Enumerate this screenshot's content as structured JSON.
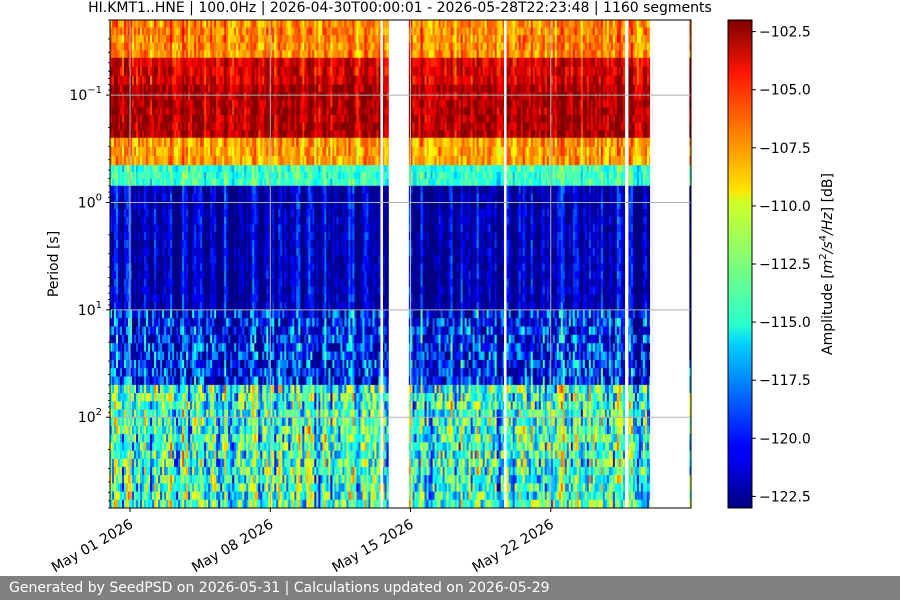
{
  "chart_data": {
    "type": "heatmap",
    "title": "HI.KMT1..HNE | 100.0Hz | 2026-04-30T00:00:01 - 2026-05-28T22:23:48 | 1160 segments",
    "xlabel": "",
    "ylabel": "Period [s]",
    "y_scale": "log",
    "y_inverted": true,
    "y_range": [
      0.02,
      700
    ],
    "x_range": [
      "2026-04-30",
      "2026-05-29"
    ],
    "x_ticks": [
      {
        "value": "2026-05-01",
        "label": "May 01 2026"
      },
      {
        "value": "2026-05-08",
        "label": "May 08 2026"
      },
      {
        "value": "2026-05-15",
        "label": "May 15 2026"
      },
      {
        "value": "2026-05-22",
        "label": "May 22 2026"
      }
    ],
    "y_ticks": [
      {
        "value": 0.1,
        "base": "10",
        "exp": "−1"
      },
      {
        "value": 1,
        "base": "10",
        "exp": "0"
      },
      {
        "value": 10,
        "base": "10",
        "exp": "1"
      },
      {
        "value": 100,
        "base": "10",
        "exp": "2"
      }
    ],
    "grid": true,
    "data_gaps": [
      {
        "start": "2026-05-13T12:00",
        "end": "2026-05-13T15:00"
      },
      {
        "start": "2026-05-13T22:00",
        "end": "2026-05-14T22:00"
      },
      {
        "start": "2026-05-19T16:00",
        "end": "2026-05-19T19:00"
      },
      {
        "start": "2026-05-25T17:00",
        "end": "2026-05-25T21:00"
      },
      {
        "start": "2026-05-26T23:00",
        "end": "2026-05-27T02:00"
      },
      {
        "start": "2026-05-27T02:00",
        "end": "2026-05-28T22:00"
      }
    ],
    "bands": [
      {
        "period_min": 0.02,
        "period_max": 0.045,
        "amplitude_db": -107.5
      },
      {
        "period_min": 0.045,
        "period_max": 0.08,
        "amplitude_db": -104.0
      },
      {
        "period_min": 0.08,
        "period_max": 0.25,
        "amplitude_db": -103.0
      },
      {
        "period_min": 0.25,
        "period_max": 0.45,
        "amplitude_db": -108.0
      },
      {
        "period_min": 0.45,
        "period_max": 0.7,
        "amplitude_db": -114.0
      },
      {
        "period_min": 0.7,
        "period_max": 10,
        "amplitude_db": -122.0
      },
      {
        "period_min": 10,
        "period_max": 50,
        "amplitude_db": -120.0
      },
      {
        "period_min": 50,
        "period_max": 700,
        "amplitude_db": -114.0
      }
    ],
    "colorbar": {
      "label_prefix": "Amplitude [",
      "label_suffix": "] [dB]",
      "label_unit_parts": [
        "m",
        "2",
        "/s",
        "4",
        "/Hz"
      ],
      "min": -123.0,
      "max": -102.0,
      "colormap": "jet",
      "ticks": [
        {
          "value": -102.5,
          "label": "−102.5"
        },
        {
          "value": -105.0,
          "label": "−105.0"
        },
        {
          "value": -107.5,
          "label": "−107.5"
        },
        {
          "value": -110.0,
          "label": "−110.0"
        },
        {
          "value": -112.5,
          "label": "−112.5"
        },
        {
          "value": -115.0,
          "label": "−115.0"
        },
        {
          "value": -117.5,
          "label": "−117.5"
        },
        {
          "value": -120.0,
          "label": "−120.0"
        },
        {
          "value": -122.5,
          "label": "−122.5"
        }
      ]
    }
  },
  "footer": {
    "text": "Generated by SeedPSD on 2026-05-31 | Calculations updated on 2026-05-29"
  },
  "colors": {
    "footer_bg": "#808080",
    "grid": "#b0b0b0"
  }
}
